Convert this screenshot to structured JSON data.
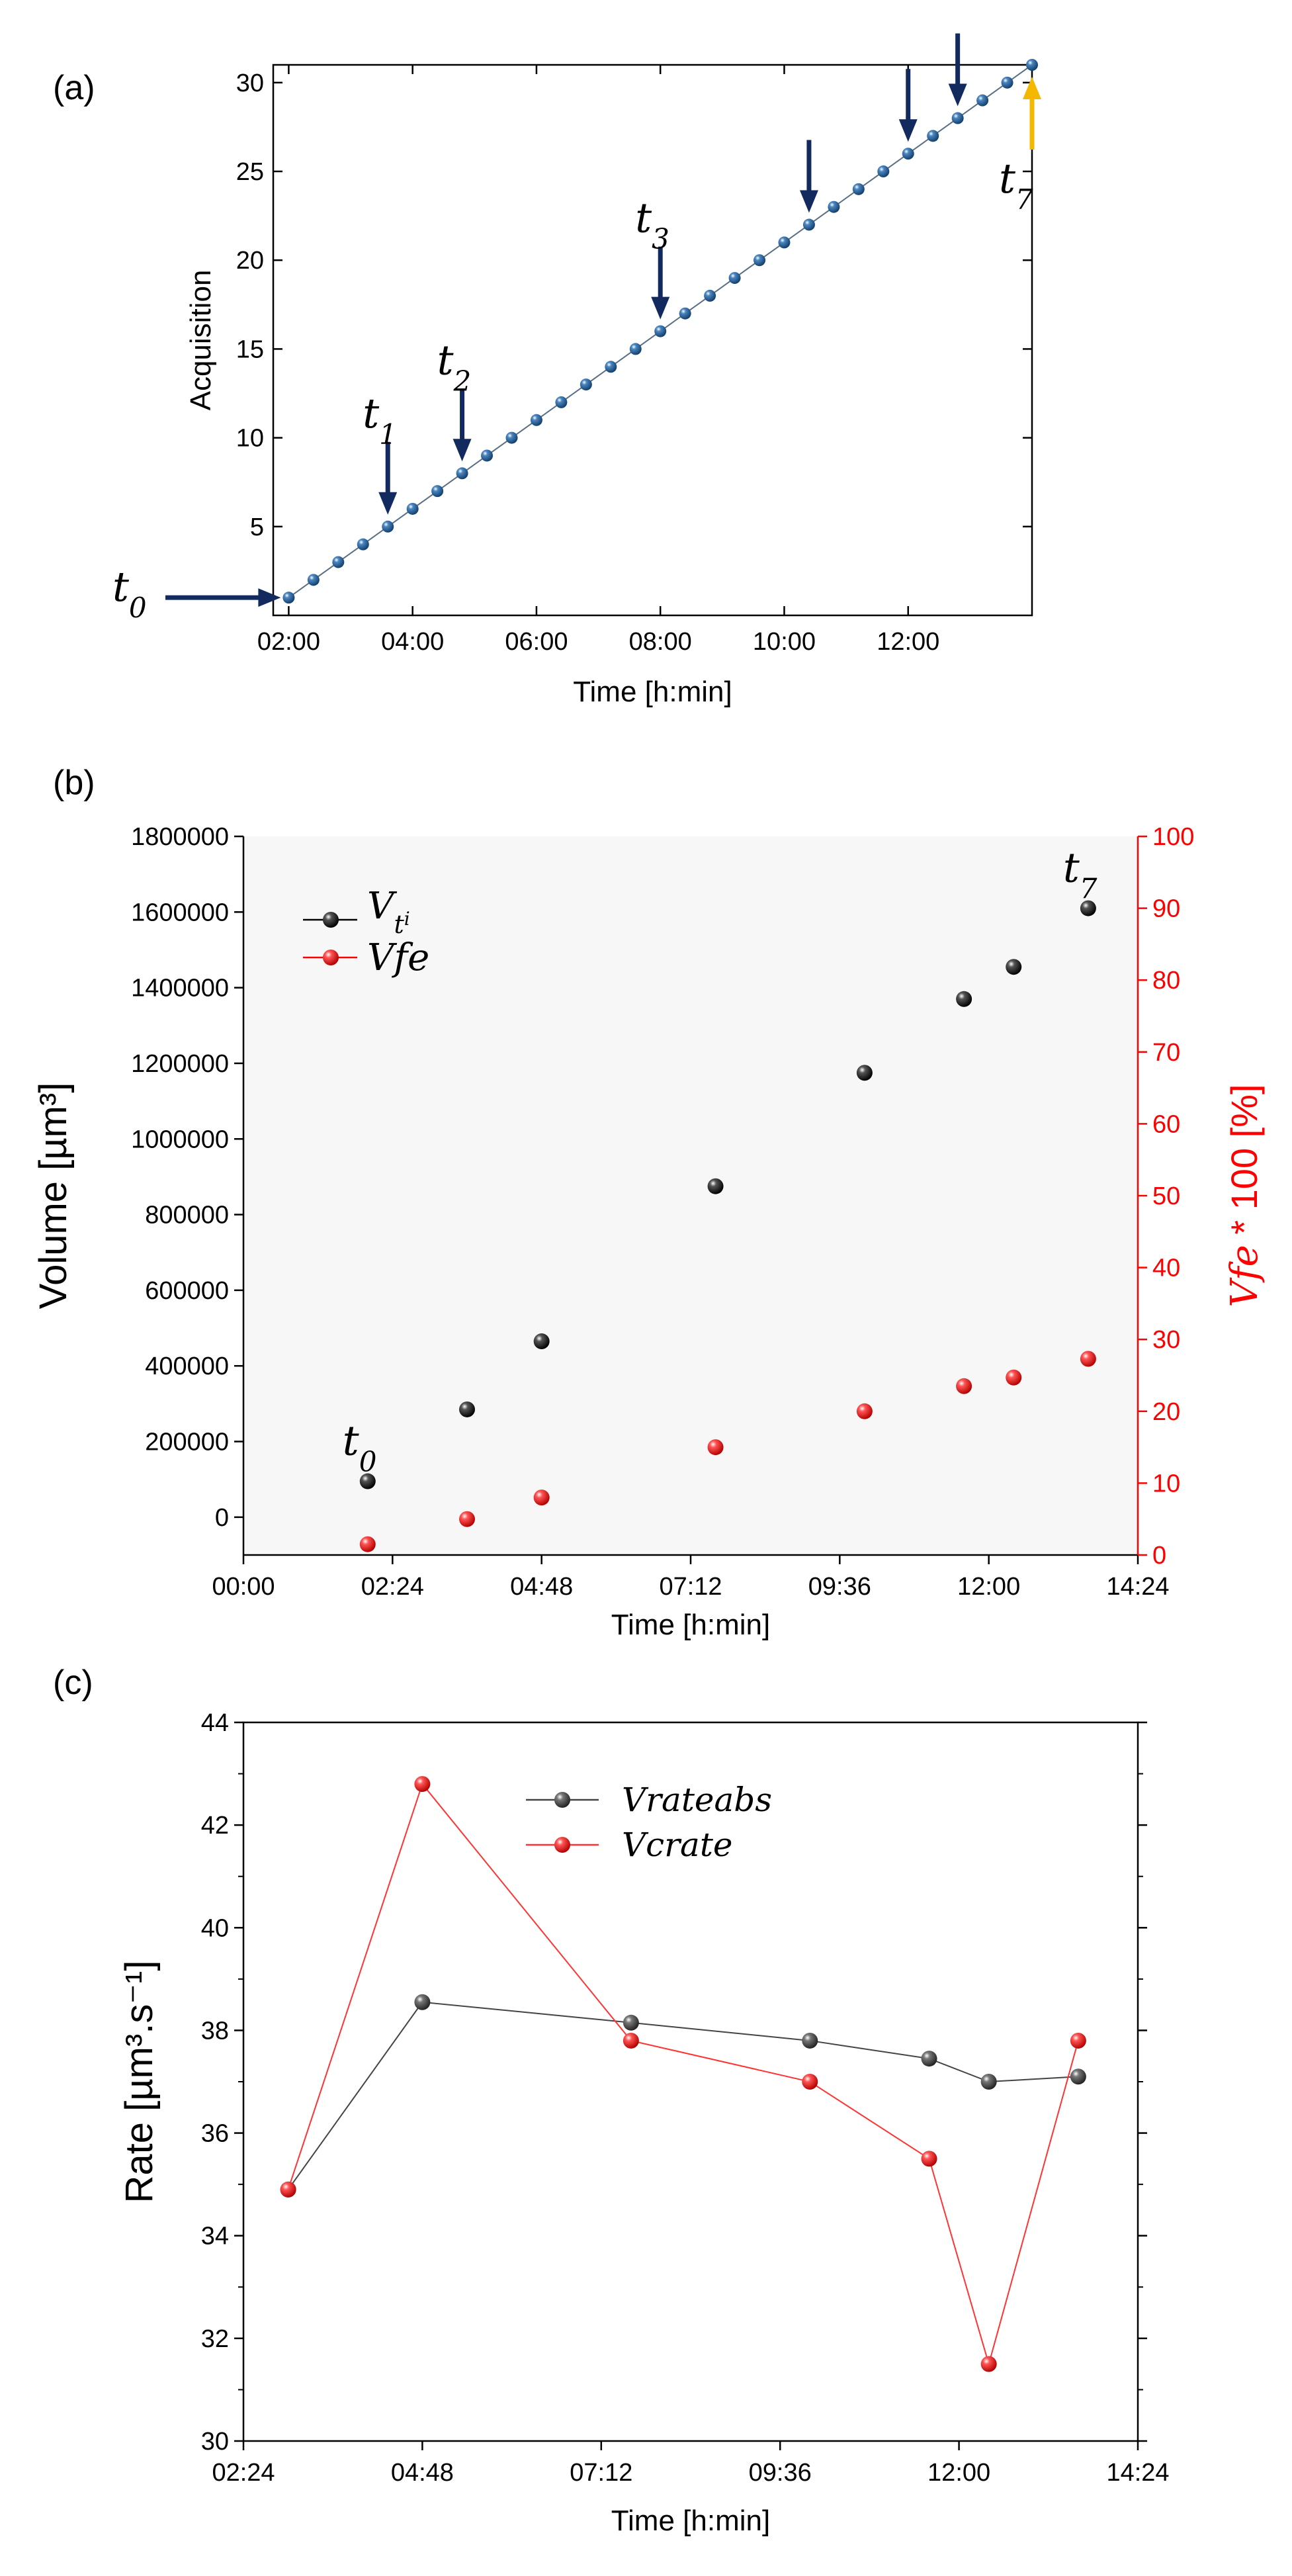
{
  "chart_data": [
    {
      "panel": "(a)",
      "type": "scatter",
      "xlabel": "Time [h:min]",
      "ylabel": "Acquisition",
      "xlim_min": [
        105,
        840
      ],
      "ylim": [
        0,
        31
      ],
      "xticks": [
        {
          "min": 120,
          "label": "02:00"
        },
        {
          "min": 240,
          "label": "04:00"
        },
        {
          "min": 360,
          "label": "06:00"
        },
        {
          "min": 480,
          "label": "08:00"
        },
        {
          "min": 600,
          "label": "10:00"
        },
        {
          "min": 720,
          "label": "12:00"
        }
      ],
      "yticks": [
        5,
        10,
        15,
        20,
        25,
        30
      ],
      "series": [
        {
          "name": "Acquisition",
          "color": "#2a5d8c",
          "line_color": "#5a6e82",
          "t0_min": 120,
          "step_min": 24,
          "first": 1,
          "last": 31
        }
      ],
      "annotations": [
        {
          "label": "t",
          "sub": "0",
          "acq": 1,
          "arrow": "right",
          "color": "#132a5e"
        },
        {
          "label": "t",
          "sub": "1",
          "acq": 5,
          "arrow": "down",
          "color": "#132a5e"
        },
        {
          "label": "t",
          "sub": "2",
          "acq": 8,
          "arrow": "down",
          "color": "#132a5e"
        },
        {
          "label": "t",
          "sub": "3",
          "acq": 16,
          "arrow": "down",
          "color": "#132a5e"
        },
        {
          "label": "",
          "sub": "",
          "acq": 22,
          "arrow": "down",
          "color": "#132a5e"
        },
        {
          "label": "",
          "sub": "",
          "acq": 26,
          "arrow": "down",
          "color": "#132a5e"
        },
        {
          "label": "",
          "sub": "",
          "acq": 28,
          "arrow": "down",
          "color": "#132a5e"
        },
        {
          "label": "t",
          "sub": "7",
          "acq": 31,
          "arrow": "up",
          "color": "#f5b800"
        }
      ]
    },
    {
      "panel": "(b)",
      "type": "scatter",
      "xlabel": "Time [h:min]",
      "ylabel": "Volume [µm³]",
      "ylabel_right_math": "Vfe",
      "ylabel_right_rest": " * 100 [%]",
      "xlim_min": [
        0,
        864
      ],
      "ylim": [
        -100000,
        1800000
      ],
      "ylim_right": [
        0,
        100
      ],
      "xticks": [
        {
          "min": 0,
          "label": "00:00"
        },
        {
          "min": 144,
          "label": "02:24"
        },
        {
          "min": 288,
          "label": "04:48"
        },
        {
          "min": 432,
          "label": "07:12"
        },
        {
          "min": 576,
          "label": "09:36"
        },
        {
          "min": 720,
          "label": "12:00"
        },
        {
          "min": 864,
          "label": "14:24"
        }
      ],
      "yticks": [
        0,
        200000,
        400000,
        600000,
        800000,
        1000000,
        1200000,
        1400000,
        1600000,
        1800000
      ],
      "yticks_right": [
        0,
        10,
        20,
        30,
        40,
        50,
        60,
        70,
        80,
        90,
        100
      ],
      "right_color": "#ff0000",
      "series": [
        {
          "name": "V",
          "sub": "t",
          "subsub": "i",
          "axis": "left",
          "color": "#000000",
          "x": [
            120,
            216,
            288,
            456,
            600,
            696,
            744,
            816
          ],
          "y": [
            95000,
            285000,
            465000,
            875000,
            1175000,
            1370000,
            1455000,
            1610000
          ]
        },
        {
          "name": "Vfe",
          "axis": "right",
          "color": "#ff0000",
          "x": [
            120,
            216,
            288,
            456,
            600,
            696,
            744,
            816
          ],
          "y": [
            1.5,
            5.0,
            8.0,
            15.0,
            20.0,
            23.5,
            24.7,
            27.3
          ]
        }
      ],
      "annotations": [
        {
          "label": "t",
          "sub": "0",
          "series": 0,
          "point": 0
        },
        {
          "label": "t",
          "sub": "7",
          "series": 0,
          "point": 7
        }
      ]
    },
    {
      "panel": "(c)",
      "type": "line",
      "xlabel": "Time [h:min]",
      "ylabel": "Rate [µm³.s⁻¹]",
      "xlim_min": [
        144,
        864
      ],
      "ylim": [
        30,
        44
      ],
      "xticks": [
        {
          "min": 144,
          "label": "02:24"
        },
        {
          "min": 288,
          "label": "04:48"
        },
        {
          "min": 432,
          "label": "07:12"
        },
        {
          "min": 576,
          "label": "09:36"
        },
        {
          "min": 720,
          "label": "12:00"
        },
        {
          "min": 864,
          "label": "14:24"
        }
      ],
      "yticks": [
        30,
        32,
        34,
        36,
        38,
        40,
        42,
        44
      ],
      "series": [
        {
          "name": "Vrateabs",
          "color": "#444444",
          "x": [
            180,
            288,
            456,
            600,
            696,
            744,
            816
          ],
          "y": [
            34.9,
            38.55,
            38.15,
            37.8,
            37.45,
            37.0,
            37.1
          ]
        },
        {
          "name": "Vcrate",
          "color": "#ff3333",
          "x": [
            180,
            288,
            456,
            600,
            696,
            744,
            816
          ],
          "y": [
            34.9,
            42.8,
            37.8,
            37.0,
            35.5,
            31.5,
            37.8
          ]
        }
      ]
    }
  ]
}
